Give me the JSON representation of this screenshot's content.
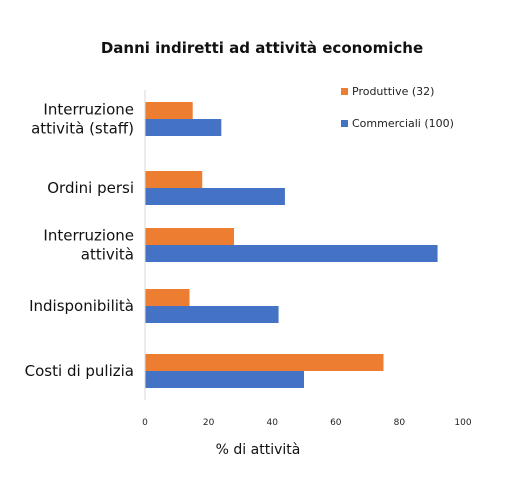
{
  "chart_data": {
    "type": "bar",
    "orientation": "horizontal",
    "title": "Danni indiretti ad attività economiche",
    "xlabel": "% di attività",
    "ylabel": "",
    "xlim": [
      0,
      100
    ],
    "xticks": [
      0,
      20,
      40,
      60,
      80,
      100
    ],
    "grid": false,
    "legend_position": "top-right",
    "categories": [
      "Interruzione attività (staff)",
      "Ordini persi",
      "Interruzione attività",
      "Indisponibilità",
      "Costi di pulizia"
    ],
    "category_label_lines": [
      [
        "Interruzione",
        "attività (staff)"
      ],
      [
        "Ordini persi"
      ],
      [
        "Interruzione",
        "attività"
      ],
      [
        "Indisponibilità"
      ],
      [
        "Costi di pulizia"
      ]
    ],
    "series": [
      {
        "name": "Produttive (32)",
        "color": "#ED7D31",
        "values": [
          15,
          18,
          28,
          14,
          75
        ]
      },
      {
        "name": "Commerciali (100)",
        "color": "#4472C4",
        "values": [
          24,
          44,
          92,
          42,
          50
        ]
      }
    ]
  }
}
